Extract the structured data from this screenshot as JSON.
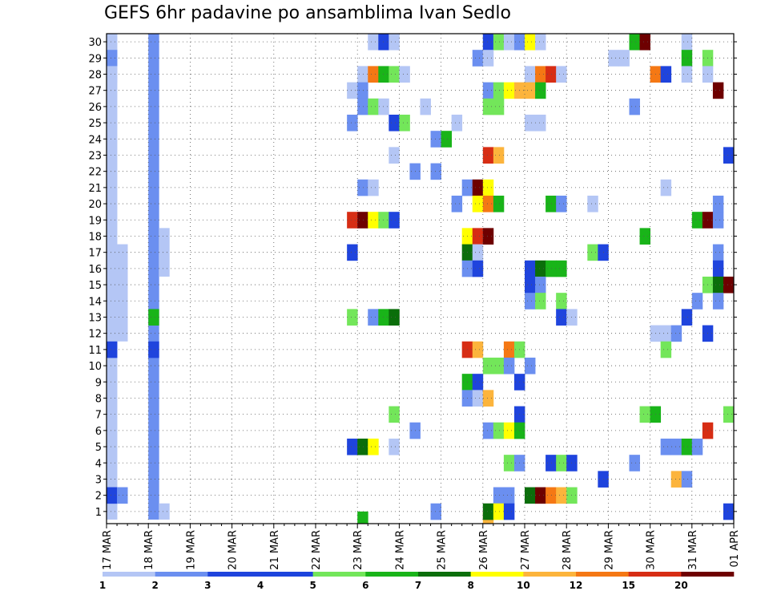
{
  "title": "GEFS 6hr padavine po ansamblima Ivan Sedlo",
  "chart_data": {
    "type": "heatmap",
    "title": "GEFS 6hr padavine po ansamblima Ivan Sedlo",
    "xlabel": "",
    "ylabel": "",
    "x_tick_labels": [
      "17 MAR",
      "18 MAR",
      "19 MAR",
      "20 MAR",
      "21 MAR",
      "22 MAR",
      "23 MAR",
      "24 MAR",
      "25 MAR",
      "26 MAR",
      "27 MAR",
      "28 MAR",
      "29 MAR",
      "30 MAR",
      "31 MAR",
      "01 APR"
    ],
    "y_tick_labels": [
      "1",
      "2",
      "3",
      "4",
      "5",
      "6",
      "7",
      "8",
      "9",
      "10",
      "11",
      "12",
      "13",
      "14",
      "15",
      "16",
      "17",
      "18",
      "19",
      "20",
      "21",
      "22",
      "23",
      "24",
      "25",
      "26",
      "27",
      "28",
      "29",
      "30"
    ],
    "ylim": [
      0.5,
      30.5
    ],
    "time_step_hours": 6,
    "grid": true,
    "legend_position": "bottom",
    "colorbar_levels": [
      "1",
      "2",
      "3",
      "4",
      "5",
      "6",
      "7",
      "8",
      "10",
      "12",
      "15",
      "20"
    ],
    "colorbar_colors": [
      "#b4c6f5",
      "#6b8ff0",
      "#1f44dd",
      "#1c44dd",
      "#73e65a",
      "#19b419",
      "#0b6e0b",
      "#ffff00",
      "#fcb43c",
      "#f57814",
      "#d72d14",
      "#6e0000"
    ],
    "cells": [
      {
        "member": 30,
        "day": 6,
        "step": 1,
        "v": 1
      },
      {
        "member": 30,
        "day": 6,
        "step": 2,
        "v": 3
      },
      {
        "member": 30,
        "day": 6,
        "step": 3,
        "v": 1
      },
      {
        "member": 30,
        "day": 9,
        "step": 0,
        "v": 3
      },
      {
        "member": 30,
        "day": 9,
        "step": 1,
        "v": 5
      },
      {
        "member": 30,
        "day": 9,
        "step": 2,
        "v": 1
      },
      {
        "member": 30,
        "day": 9,
        "step": 3,
        "v": 2
      },
      {
        "member": 30,
        "day": 10,
        "step": 0,
        "v": 8
      },
      {
        "member": 30,
        "day": 10,
        "step": 1,
        "v": 1
      },
      {
        "member": 30,
        "day": 12,
        "step": 2,
        "v": 6
      },
      {
        "member": 30,
        "day": 12,
        "step": 3,
        "v": 20
      },
      {
        "member": 30,
        "day": 13,
        "step": 3,
        "v": 1
      },
      {
        "member": 29,
        "day": 0,
        "step": 0,
        "v": 2
      },
      {
        "member": 29,
        "day": 8,
        "step": 3,
        "v": 2
      },
      {
        "member": 29,
        "day": 9,
        "step": 0,
        "v": 1
      },
      {
        "member": 29,
        "day": 12,
        "step": 0,
        "v": 1
      },
      {
        "member": 29,
        "day": 12,
        "step": 1,
        "v": 1
      },
      {
        "member": 29,
        "day": 13,
        "step": 3,
        "v": 6
      },
      {
        "member": 29,
        "day": 14,
        "step": 1,
        "v": 5
      },
      {
        "member": 28,
        "day": 0,
        "step": 0,
        "v": 1
      },
      {
        "member": 28,
        "day": 6,
        "step": 0,
        "v": 1
      },
      {
        "member": 28,
        "day": 6,
        "step": 1,
        "v": 12
      },
      {
        "member": 28,
        "day": 6,
        "step": 2,
        "v": 6
      },
      {
        "member": 28,
        "day": 6,
        "step": 3,
        "v": 5
      },
      {
        "member": 28,
        "day": 7,
        "step": 0,
        "v": 1
      },
      {
        "member": 28,
        "day": 10,
        "step": 0,
        "v": 1
      },
      {
        "member": 28,
        "day": 10,
        "step": 1,
        "v": 12
      },
      {
        "member": 28,
        "day": 10,
        "step": 2,
        "v": 15
      },
      {
        "member": 28,
        "day": 10,
        "step": 3,
        "v": 1
      },
      {
        "member": 28,
        "day": 13,
        "step": 0,
        "v": 12
      },
      {
        "member": 28,
        "day": 13,
        "step": 1,
        "v": 3
      },
      {
        "member": 28,
        "day": 13,
        "step": 3,
        "v": 1
      },
      {
        "member": 28,
        "day": 14,
        "step": 1,
        "v": 1
      },
      {
        "member": 27,
        "day": 5,
        "step": 3,
        "v": 1
      },
      {
        "member": 27,
        "day": 6,
        "step": 0,
        "v": 2
      },
      {
        "member": 27,
        "day": 9,
        "step": 0,
        "v": 2
      },
      {
        "member": 27,
        "day": 9,
        "step": 1,
        "v": 5
      },
      {
        "member": 27,
        "day": 9,
        "step": 2,
        "v": 8
      },
      {
        "member": 27,
        "day": 9,
        "step": 3,
        "v": 10
      },
      {
        "member": 27,
        "day": 10,
        "step": 0,
        "v": 10
      },
      {
        "member": 27,
        "day": 10,
        "step": 1,
        "v": 6
      },
      {
        "member": 27,
        "day": 14,
        "step": 2,
        "v": 20
      },
      {
        "member": 26,
        "day": 6,
        "step": 0,
        "v": 2
      },
      {
        "member": 26,
        "day": 6,
        "step": 1,
        "v": 5
      },
      {
        "member": 26,
        "day": 6,
        "step": 2,
        "v": 1
      },
      {
        "member": 26,
        "day": 7,
        "step": 2,
        "v": 1
      },
      {
        "member": 26,
        "day": 9,
        "step": 0,
        "v": 5
      },
      {
        "member": 26,
        "day": 9,
        "step": 1,
        "v": 5
      },
      {
        "member": 26,
        "day": 12,
        "step": 2,
        "v": 2
      },
      {
        "member": 25,
        "day": 5,
        "step": 3,
        "v": 2
      },
      {
        "member": 25,
        "day": 6,
        "step": 3,
        "v": 3
      },
      {
        "member": 25,
        "day": 7,
        "step": 0,
        "v": 5
      },
      {
        "member": 25,
        "day": 8,
        "step": 1,
        "v": 1
      },
      {
        "member": 25,
        "day": 10,
        "step": 0,
        "v": 1
      },
      {
        "member": 25,
        "day": 10,
        "step": 1,
        "v": 1
      },
      {
        "member": 24,
        "day": 7,
        "step": 3,
        "v": 2
      },
      {
        "member": 24,
        "day": 8,
        "step": 0,
        "v": 6
      },
      {
        "member": 23,
        "day": 6,
        "step": 3,
        "v": 1
      },
      {
        "member": 23,
        "day": 9,
        "step": 0,
        "v": 15
      },
      {
        "member": 23,
        "day": 9,
        "step": 1,
        "v": 10
      },
      {
        "member": 23,
        "day": 14,
        "step": 3,
        "v": 3
      },
      {
        "member": 22,
        "day": 7,
        "step": 1,
        "v": 2
      },
      {
        "member": 22,
        "day": 7,
        "step": 3,
        "v": 2
      },
      {
        "member": 21,
        "day": 6,
        "step": 0,
        "v": 2
      },
      {
        "member": 21,
        "day": 6,
        "step": 1,
        "v": 1
      },
      {
        "member": 21,
        "day": 8,
        "step": 2,
        "v": 2
      },
      {
        "member": 21,
        "day": 8,
        "step": 3,
        "v": 20
      },
      {
        "member": 21,
        "day": 9,
        "step": 0,
        "v": 8
      },
      {
        "member": 21,
        "day": 13,
        "step": 1,
        "v": 1
      },
      {
        "member": 20,
        "day": 8,
        "step": 1,
        "v": 2
      },
      {
        "member": 20,
        "day": 8,
        "step": 3,
        "v": 8
      },
      {
        "member": 20,
        "day": 9,
        "step": 0,
        "v": 12
      },
      {
        "member": 20,
        "day": 9,
        "step": 1,
        "v": 6
      },
      {
        "member": 20,
        "day": 10,
        "step": 2,
        "v": 6
      },
      {
        "member": 20,
        "day": 10,
        "step": 3,
        "v": 2
      },
      {
        "member": 20,
        "day": 11,
        "step": 2,
        "v": 1
      },
      {
        "member": 20,
        "day": 14,
        "step": 2,
        "v": 2
      },
      {
        "member": 19,
        "day": 5,
        "step": 3,
        "v": 15
      },
      {
        "member": 19,
        "day": 6,
        "step": 0,
        "v": 20
      },
      {
        "member": 19,
        "day": 6,
        "step": 1,
        "v": 8
      },
      {
        "member": 19,
        "day": 6,
        "step": 2,
        "v": 5
      },
      {
        "member": 19,
        "day": 6,
        "step": 3,
        "v": 3
      },
      {
        "member": 19,
        "day": 14,
        "step": 0,
        "v": 6
      },
      {
        "member": 19,
        "day": 14,
        "step": 1,
        "v": 20
      },
      {
        "member": 19,
        "day": 14,
        "step": 2,
        "v": 2
      },
      {
        "member": 18,
        "day": 8,
        "step": 2,
        "v": 8
      },
      {
        "member": 18,
        "day": 8,
        "step": 3,
        "v": 15
      },
      {
        "member": 18,
        "day": 9,
        "step": 0,
        "v": 20
      },
      {
        "member": 18,
        "day": 12,
        "step": 3,
        "v": 6
      },
      {
        "member": 17,
        "day": 5,
        "step": 3,
        "v": 3
      },
      {
        "member": 17,
        "day": 8,
        "step": 2,
        "v": 7
      },
      {
        "member": 17,
        "day": 8,
        "step": 3,
        "v": 1
      },
      {
        "member": 17,
        "day": 11,
        "step": 2,
        "v": 5
      },
      {
        "member": 17,
        "day": 11,
        "step": 3,
        "v": 3
      },
      {
        "member": 17,
        "day": 14,
        "step": 2,
        "v": 2
      },
      {
        "member": 16,
        "day": 8,
        "step": 2,
        "v": 2
      },
      {
        "member": 16,
        "day": 8,
        "step": 3,
        "v": 3
      },
      {
        "member": 16,
        "day": 10,
        "step": 0,
        "v": 3
      },
      {
        "member": 16,
        "day": 10,
        "step": 1,
        "v": 7
      },
      {
        "member": 16,
        "day": 10,
        "step": 2,
        "v": 6
      },
      {
        "member": 16,
        "day": 10,
        "step": 3,
        "v": 6
      },
      {
        "member": 16,
        "day": 14,
        "step": 2,
        "v": 3
      },
      {
        "member": 15,
        "day": 10,
        "step": 0,
        "v": 3
      },
      {
        "member": 15,
        "day": 10,
        "step": 1,
        "v": 2
      },
      {
        "member": 15,
        "day": 14,
        "step": 1,
        "v": 5
      },
      {
        "member": 15,
        "day": 14,
        "step": 2,
        "v": 7
      },
      {
        "member": 15,
        "day": 14,
        "step": 3,
        "v": 20
      },
      {
        "member": 14,
        "day": 10,
        "step": 0,
        "v": 2
      },
      {
        "member": 14,
        "day": 10,
        "step": 1,
        "v": 5
      },
      {
        "member": 14,
        "day": 10,
        "step": 3,
        "v": 5
      },
      {
        "member": 14,
        "day": 14,
        "step": 0,
        "v": 2
      },
      {
        "member": 14,
        "day": 14,
        "step": 2,
        "v": 2
      },
      {
        "member": 13,
        "day": 1,
        "step": 0,
        "v": 6
      },
      {
        "member": 13,
        "day": 5,
        "step": 3,
        "v": 5
      },
      {
        "member": 13,
        "day": 6,
        "step": 1,
        "v": 2
      },
      {
        "member": 13,
        "day": 6,
        "step": 2,
        "v": 6
      },
      {
        "member": 13,
        "day": 6,
        "step": 3,
        "v": 7
      },
      {
        "member": 13,
        "day": 10,
        "step": 3,
        "v": 3
      },
      {
        "member": 13,
        "day": 11,
        "step": 0,
        "v": 1
      },
      {
        "member": 13,
        "day": 13,
        "step": 3,
        "v": 3
      },
      {
        "member": 12,
        "day": 13,
        "step": 0,
        "v": 1
      },
      {
        "member": 12,
        "day": 13,
        "step": 1,
        "v": 1
      },
      {
        "member": 12,
        "day": 13,
        "step": 2,
        "v": 2
      },
      {
        "member": 12,
        "day": 14,
        "step": 1,
        "v": 3
      },
      {
        "member": 11,
        "day": 0,
        "step": 0,
        "v": 3
      },
      {
        "member": 11,
        "day": 1,
        "step": 0,
        "v": 3
      },
      {
        "member": 11,
        "day": 8,
        "step": 2,
        "v": 15
      },
      {
        "member": 11,
        "day": 8,
        "step": 3,
        "v": 10
      },
      {
        "member": 11,
        "day": 9,
        "step": 2,
        "v": 12
      },
      {
        "member": 11,
        "day": 9,
        "step": 3,
        "v": 5
      },
      {
        "member": 11,
        "day": 13,
        "step": 1,
        "v": 5
      },
      {
        "member": 10,
        "day": 9,
        "step": 0,
        "v": 5
      },
      {
        "member": 10,
        "day": 9,
        "step": 1,
        "v": 5
      },
      {
        "member": 10,
        "day": 9,
        "step": 2,
        "v": 2
      },
      {
        "member": 10,
        "day": 10,
        "step": 0,
        "v": 2
      },
      {
        "member": 9,
        "day": 8,
        "step": 2,
        "v": 6
      },
      {
        "member": 9,
        "day": 8,
        "step": 3,
        "v": 3
      },
      {
        "member": 9,
        "day": 9,
        "step": 3,
        "v": 3
      },
      {
        "member": 8,
        "day": 8,
        "step": 2,
        "v": 2
      },
      {
        "member": 8,
        "day": 8,
        "step": 3,
        "v": 1
      },
      {
        "member": 8,
        "day": 9,
        "step": 0,
        "v": 10
      },
      {
        "member": 7,
        "day": 6,
        "step": 3,
        "v": 5
      },
      {
        "member": 7,
        "day": 9,
        "step": 3,
        "v": 3
      },
      {
        "member": 7,
        "day": 12,
        "step": 3,
        "v": 5
      },
      {
        "member": 7,
        "day": 13,
        "step": 0,
        "v": 6
      },
      {
        "member": 7,
        "day": 14,
        "step": 3,
        "v": 5
      },
      {
        "member": 6,
        "day": 7,
        "step": 1,
        "v": 2
      },
      {
        "member": 6,
        "day": 9,
        "step": 0,
        "v": 2
      },
      {
        "member": 6,
        "day": 9,
        "step": 1,
        "v": 5
      },
      {
        "member": 6,
        "day": 9,
        "step": 2,
        "v": 8
      },
      {
        "member": 6,
        "day": 9,
        "step": 3,
        "v": 6
      },
      {
        "member": 6,
        "day": 14,
        "step": 1,
        "v": 15
      },
      {
        "member": 5,
        "day": 5,
        "step": 3,
        "v": 3
      },
      {
        "member": 5,
        "day": 6,
        "step": 0,
        "v": 7
      },
      {
        "member": 5,
        "day": 6,
        "step": 1,
        "v": 8
      },
      {
        "member": 5,
        "day": 6,
        "step": 3,
        "v": 1
      },
      {
        "member": 5,
        "day": 13,
        "step": 1,
        "v": 2
      },
      {
        "member": 5,
        "day": 13,
        "step": 2,
        "v": 2
      },
      {
        "member": 5,
        "day": 13,
        "step": 3,
        "v": 6
      },
      {
        "member": 5,
        "day": 14,
        "step": 0,
        "v": 2
      },
      {
        "member": 4,
        "day": 9,
        "step": 2,
        "v": 5
      },
      {
        "member": 4,
        "day": 9,
        "step": 3,
        "v": 2
      },
      {
        "member": 4,
        "day": 10,
        "step": 2,
        "v": 3
      },
      {
        "member": 4,
        "day": 10,
        "step": 3,
        "v": 5
      },
      {
        "member": 4,
        "day": 11,
        "step": 0,
        "v": 3
      },
      {
        "member": 4,
        "day": 12,
        "step": 2,
        "v": 2
      },
      {
        "member": 3,
        "day": 11,
        "step": 3,
        "v": 3
      },
      {
        "member": 3,
        "day": 13,
        "step": 2,
        "v": 10
      },
      {
        "member": 3,
        "day": 13,
        "step": 3,
        "v": 2
      },
      {
        "member": 2,
        "day": 0,
        "step": 0,
        "v": 3
      },
      {
        "member": 2,
        "day": 0,
        "step": 1,
        "v": 2
      },
      {
        "member": 2,
        "day": 9,
        "step": 1,
        "v": 2
      },
      {
        "member": 2,
        "day": 9,
        "step": 2,
        "v": 2
      },
      {
        "member": 2,
        "day": 10,
        "step": 0,
        "v": 7
      },
      {
        "member": 2,
        "day": 10,
        "step": 1,
        "v": 20
      },
      {
        "member": 2,
        "day": 10,
        "step": 2,
        "v": 12
      },
      {
        "member": 2,
        "day": 10,
        "step": 3,
        "v": 10
      },
      {
        "member": 2,
        "day": 11,
        "step": 0,
        "v": 5
      },
      {
        "member": 1,
        "day": 7,
        "step": 3,
        "v": 2
      },
      {
        "member": 1,
        "day": 9,
        "step": 0,
        "v": 7
      },
      {
        "member": 1,
        "day": 9,
        "step": 1,
        "v": 8
      },
      {
        "member": 1,
        "day": 9,
        "step": 2,
        "v": 3
      },
      {
        "member": 1,
        "day": 14,
        "step": 3,
        "v": 3
      }
    ],
    "bands": [
      {
        "day": 0,
        "step": 0,
        "members": [
          1,
          30
        ],
        "v": 1
      },
      {
        "day": 1,
        "step": 0,
        "members": [
          1,
          30
        ],
        "v": 2
      },
      {
        "day": 1,
        "step": 1,
        "members": [
          1,
          1
        ],
        "v": 1
      },
      {
        "day": 1,
        "step": 1,
        "members": [
          16,
          18
        ],
        "v": 1
      },
      {
        "day": 0,
        "step": 1,
        "members": [
          12,
          17
        ],
        "v": 1
      },
      {
        "day": 6,
        "step": 0,
        "members": [
          0.3,
          0.5
        ],
        "v": 6
      },
      {
        "day": 9,
        "step": 0,
        "members": [
          0.3,
          0.5
        ],
        "v": 10
      }
    ]
  }
}
